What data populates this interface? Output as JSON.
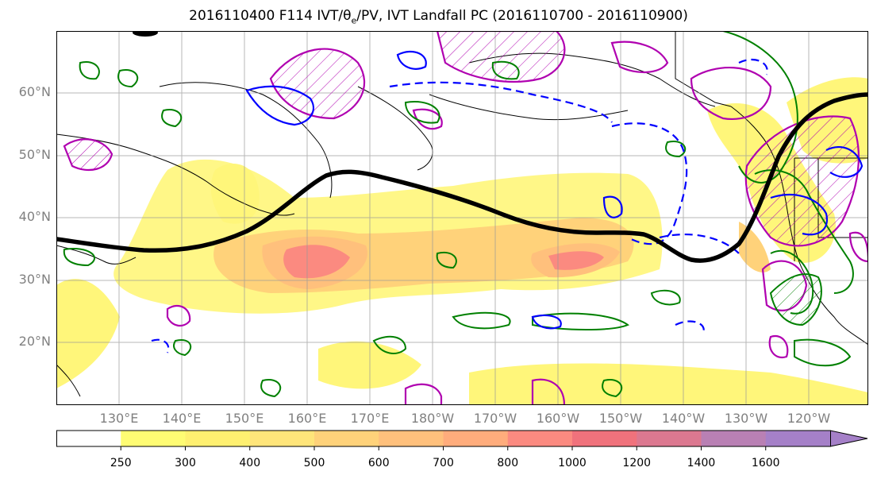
{
  "title": {
    "prefix": "2016110400 F114 IVT/",
    "theta": "θ",
    "sub": "e",
    "suffix": "/PV, IVT Landfall PC (2016110700 - 2016110900)"
  },
  "map": {
    "lat_labels": [
      "60°N",
      "50°N",
      "40°N",
      "30°N",
      "20°N"
    ],
    "lon_labels": [
      "130°E",
      "140°E",
      "150°E",
      "160°E",
      "170°E",
      "180°W",
      "170°W",
      "160°W",
      "150°W",
      "140°W",
      "130°W",
      "120°W"
    ],
    "colors": {
      "ivt_low": "#fff67a",
      "ivt_mid": "#ffc07a",
      "ivt_high": "#fb8a80",
      "theta_contour": "#008000",
      "pv_contour_solid": "#0000ff",
      "pv_dashed": "#0000ff",
      "hatch_contour": "#b000b0",
      "landfall_pc": "#000000",
      "coastline": "#000000",
      "grid": "#999999"
    }
  },
  "colorbar": {
    "ticks": [
      "250",
      "300",
      "400",
      "500",
      "600",
      "700",
      "800",
      "1000",
      "1200",
      "1400",
      "1600"
    ],
    "colors": [
      "#ffffff",
      "#fffc73",
      "#fff070",
      "#ffe57a",
      "#ffd27a",
      "#ffc07c",
      "#ffac7c",
      "#fb8a80",
      "#f0727c",
      "#dc7890",
      "#b980b4",
      "#a580c8"
    ]
  }
}
